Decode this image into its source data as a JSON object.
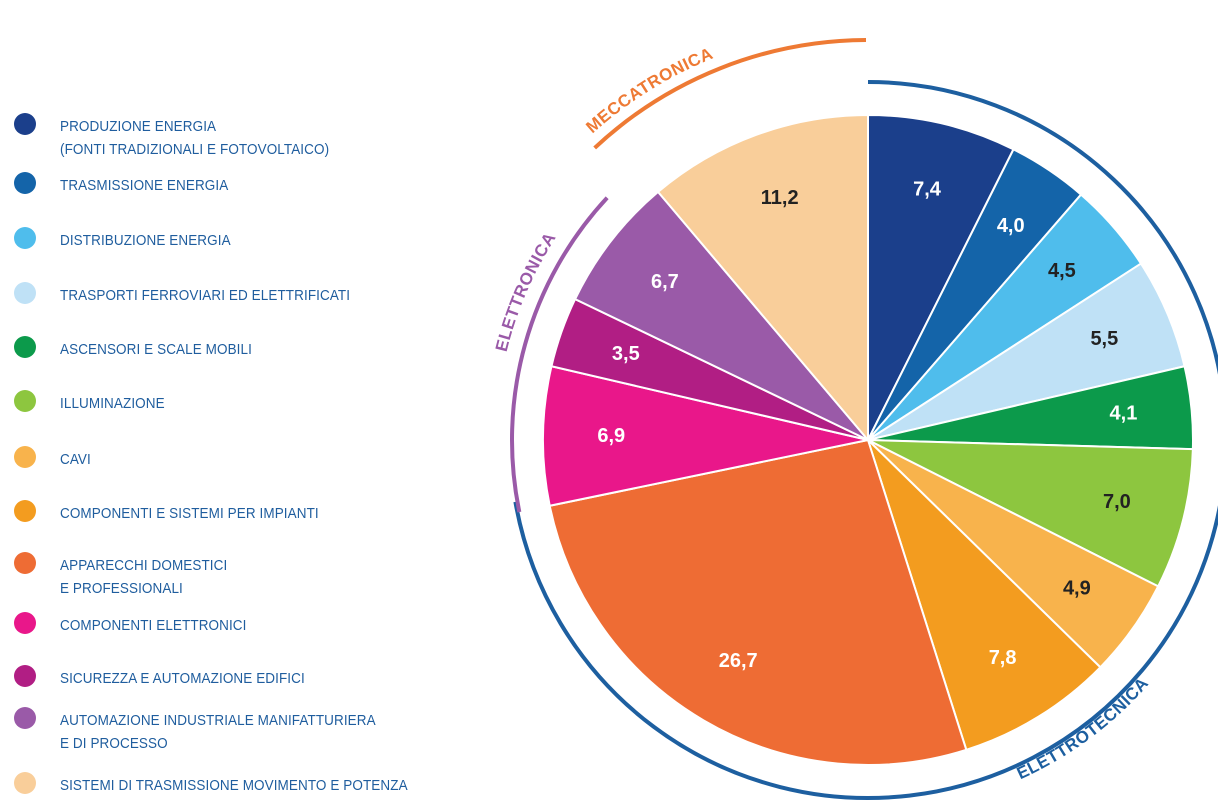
{
  "chart_data": {
    "type": "pie",
    "categories": [
      "PRODUZIONE ENERGIA\n(FONTI TRADIZIONALI E FOTOVOLTAICO)",
      "TRASMISSIONE ENERGIA",
      "DISTRIBUZIONE ENERGIA",
      "TRASPORTI FERROVIARI ED ELETTRIFICATI",
      "ASCENSORI E SCALE MOBILI",
      "ILLUMINAZIONE",
      "CAVI",
      "COMPONENTI E SISTEMI PER IMPIANTI",
      "APPARECCHI DOMESTICI\nE PROFESSIONALI",
      "COMPONENTI ELETTRONICI",
      "SICUREZZA E AUTOMAZIONE EDIFICI",
      "AUTOMAZIONE INDUSTRIALE MANIFATTURIERA\nE DI PROCESSO",
      "SISTEMI DI TRASMISSIONE MOVIMENTO E POTENZA"
    ],
    "values": [
      7.4,
      4.0,
      4.5,
      5.5,
      4.1,
      7.0,
      4.9,
      7.8,
      26.7,
      6.9,
      3.5,
      6.7,
      11.2
    ],
    "value_labels": [
      "7,4",
      "4,0",
      "4,5",
      "5,5",
      "4,1",
      "7,0",
      "4,9",
      "7,8",
      "26,7",
      "6,9",
      "3,5",
      "6,7",
      "11,2"
    ],
    "colors": [
      "#1b3f8b",
      "#1464a9",
      "#4fbdec",
      "#bfe1f6",
      "#0c9a4b",
      "#8dc63f",
      "#f8b34c",
      "#f39c1f",
      "#ee6c34",
      "#e9178a",
      "#b11e84",
      "#9a5aa8",
      "#f9ce9a"
    ],
    "value_label_colors": [
      "#ffffff",
      "#ffffff",
      "#222222",
      "#222222",
      "#ffffff",
      "#222222",
      "#222222",
      "#ffffff",
      "#ffffff",
      "#ffffff",
      "#ffffff",
      "#ffffff",
      "#222222"
    ],
    "groups": [
      {
        "name": "ELETTROTECNICA",
        "color": "#1d5fa0"
      },
      {
        "name": "ELETTRONICA",
        "color": "#9a5aa8"
      },
      {
        "name": "MECCATRONICA",
        "color": "#ee7a34"
      }
    ]
  }
}
